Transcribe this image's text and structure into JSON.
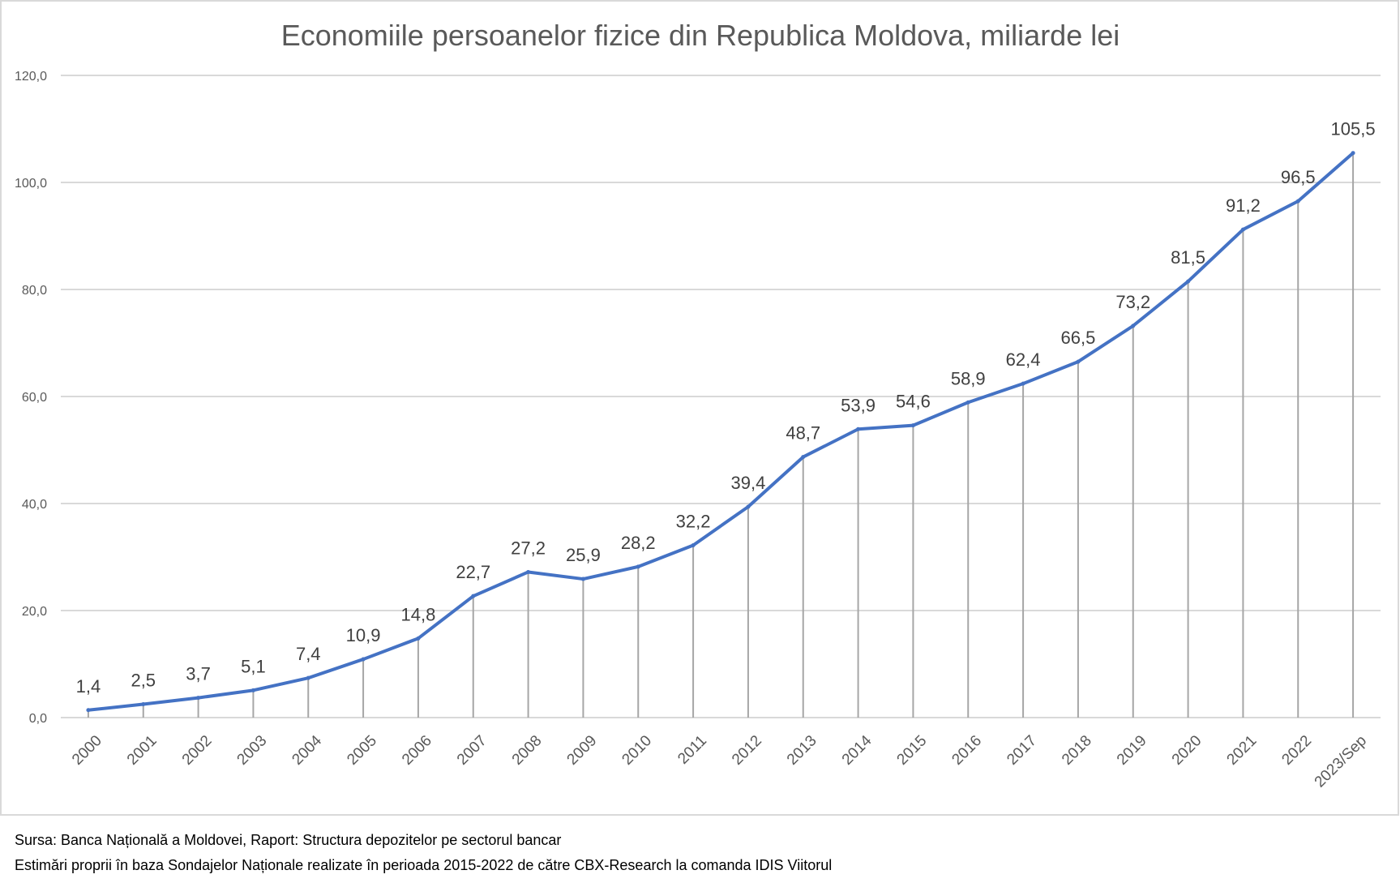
{
  "chart_data": {
    "type": "line",
    "title": "Economiile persoanelor fizice din Republica Moldova, miliarde lei",
    "xlabel": "",
    "ylabel": "",
    "ylim": [
      0,
      120
    ],
    "yticks": [
      "0,0",
      "20,0",
      "40,0",
      "60,0",
      "80,0",
      "100,0",
      "120,0"
    ],
    "grid": true,
    "categories": [
      "2000",
      "2001",
      "2002",
      "2003",
      "2004",
      "2005",
      "2006",
      "2007",
      "2008",
      "2009",
      "2010",
      "2011",
      "2012",
      "2013",
      "2014",
      "2015",
      "2016",
      "2017",
      "2018",
      "2019",
      "2020",
      "2021",
      "2022",
      "2023/Sep"
    ],
    "values": [
      1.4,
      2.5,
      3.7,
      5.1,
      7.4,
      10.9,
      14.8,
      22.7,
      27.2,
      25.9,
      28.2,
      32.2,
      39.4,
      48.7,
      53.9,
      54.6,
      58.9,
      62.4,
      66.5,
      73.2,
      81.5,
      91.2,
      96.5,
      105.5
    ],
    "labels": [
      "1,4",
      "2,5",
      "3,7",
      "5,1",
      "7,4",
      "10,9",
      "14,8",
      "22,7",
      "27,2",
      "25,9",
      "28,2",
      "32,2",
      "39,4",
      "48,7",
      "53,9",
      "54,6",
      "58,9",
      "62,4",
      "66,5",
      "73,2",
      "81,5",
      "91,2",
      "96,5",
      "105,5"
    ],
    "line_color": "#4472C4"
  },
  "footer": {
    "source": "Sursa: Banca Națională a Moldovei, Raport: Structura depozitelor pe sectorul bancar",
    "estimates": "Estimări proprii în baza Sondajelor Naționale realizate în perioada 2015-2022 de către CBX-Research la comanda IDIS Viitorul"
  }
}
